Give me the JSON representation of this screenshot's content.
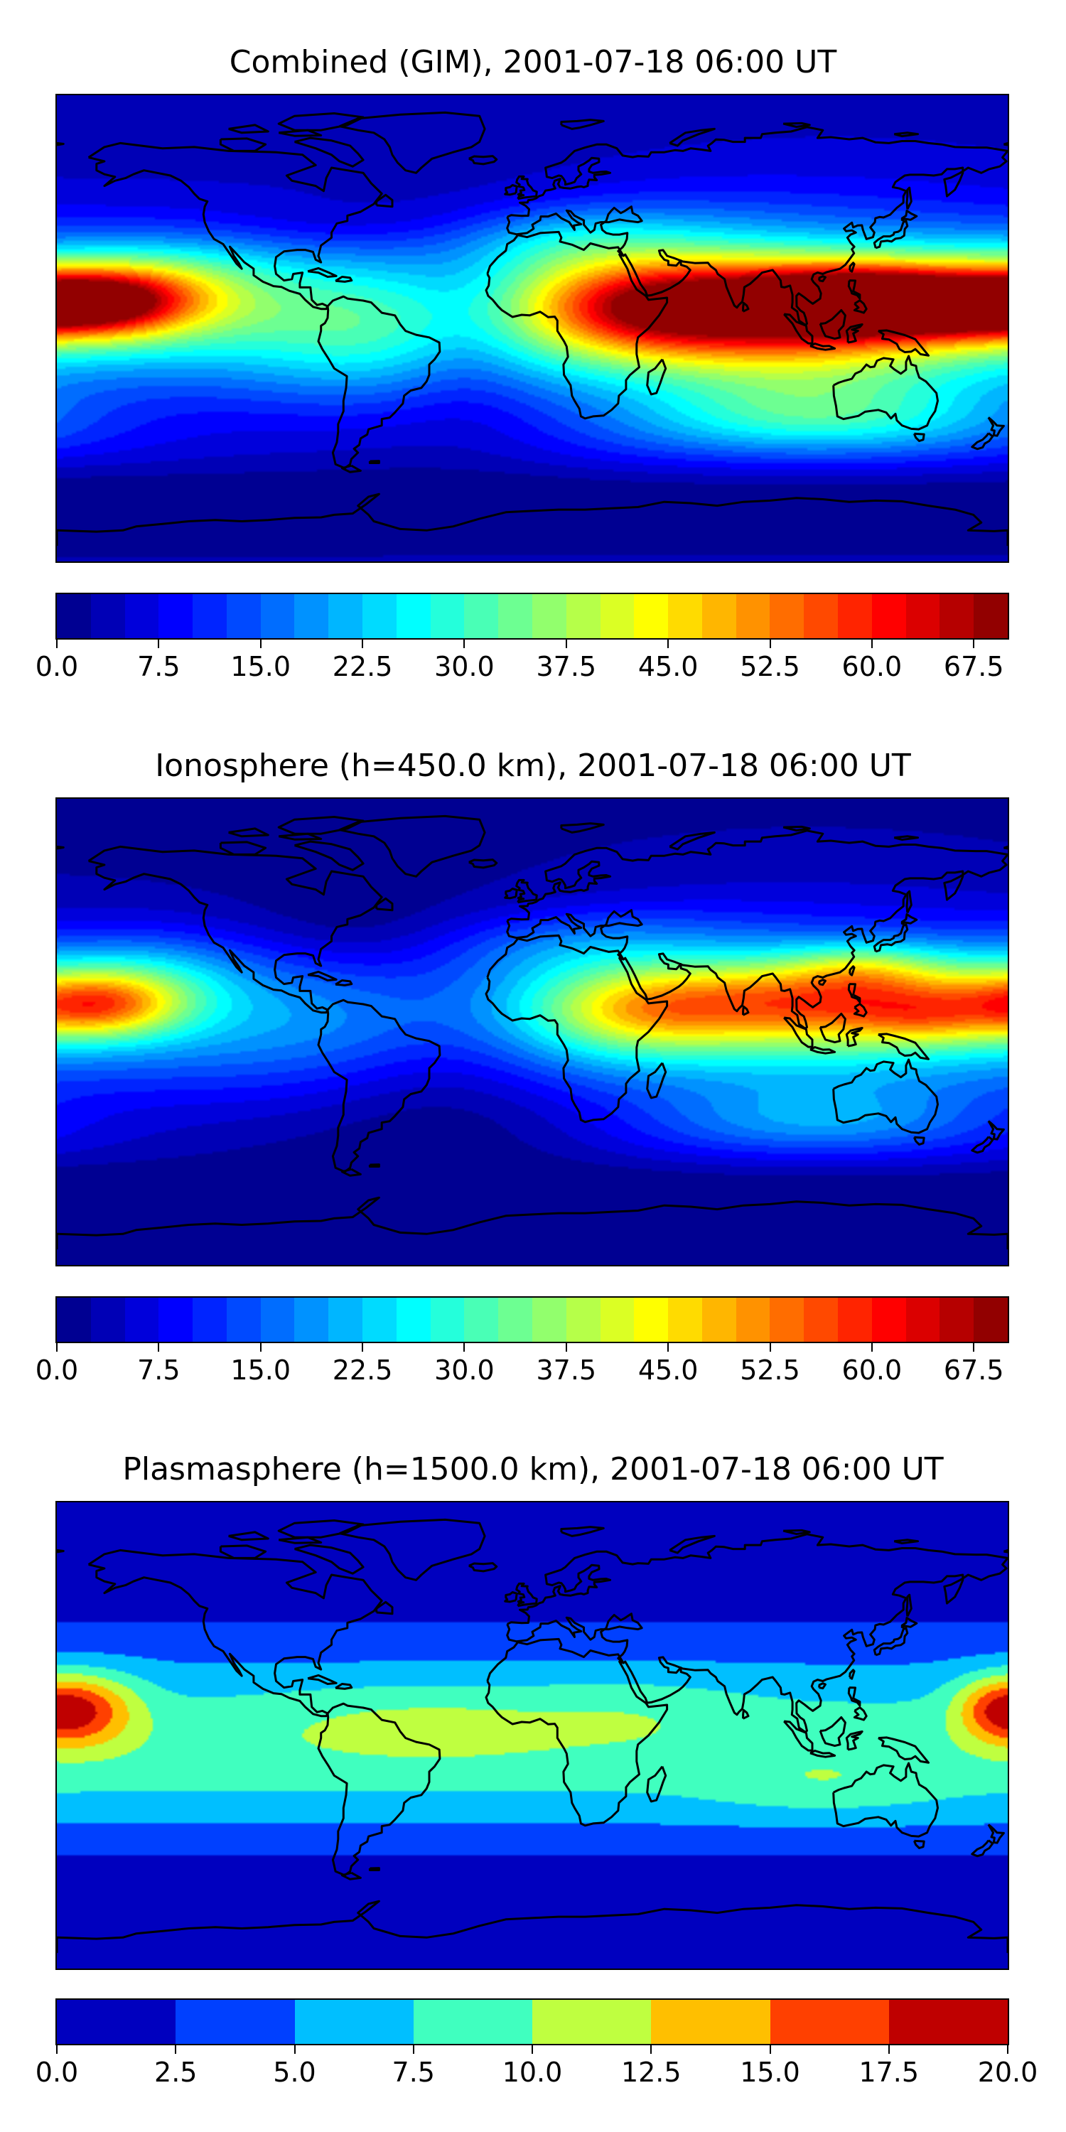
{
  "panels": [
    {
      "title": "Combined (GIM), 2001-07-18 06:00 UT",
      "colorbar": {
        "min": 0,
        "max": 70,
        "step": 2.5,
        "ticks": [
          "0.0",
          "7.5",
          "15.0",
          "22.5",
          "30.0",
          "37.5",
          "45.0",
          "52.5",
          "60.0",
          "67.5"
        ],
        "tick_values": [
          0,
          7.5,
          15,
          22.5,
          30,
          37.5,
          45,
          52.5,
          60,
          67.5
        ],
        "colormap": "jet"
      },
      "features": [
        {
          "lon": 125,
          "lat": 10,
          "rx": 80,
          "ry": 16,
          "v": 40
        },
        {
          "lon": 135,
          "lat": 12,
          "rx": 40,
          "ry": 10,
          "v": 20
        },
        {
          "lon": 160,
          "lat": 5,
          "rx": 30,
          "ry": 9,
          "v": 10
        },
        {
          "lon": 40,
          "lat": 8,
          "rx": 40,
          "ry": 18,
          "v": 22
        },
        {
          "lon": 90,
          "lat": 0,
          "rx": 60,
          "ry": 25,
          "v": 14
        },
        {
          "lon": -165,
          "lat": 10,
          "rx": 30,
          "ry": 12,
          "v": 30
        },
        {
          "lon": -140,
          "lat": 15,
          "rx": 40,
          "ry": 18,
          "v": 14
        },
        {
          "lon": 110,
          "lat": -35,
          "rx": 60,
          "ry": 15,
          "v": 18
        },
        {
          "lon": 10,
          "lat": 35,
          "rx": 50,
          "ry": 14,
          "v": 10
        },
        {
          "lon": -70,
          "lat": -5,
          "rx": 40,
          "ry": 25,
          "v": 6
        },
        {
          "lon": -25,
          "lat": 5,
          "rx": 25,
          "ry": 45,
          "v": -6
        },
        {
          "lon": -60,
          "lat": 40,
          "rx": 40,
          "ry": 12,
          "v": -5
        }
      ]
    },
    {
      "title": "Ionosphere  (h=450.0 km), 2001-07-18 06:00 UT",
      "colorbar": {
        "min": 0,
        "max": 70,
        "step": 2.5,
        "ticks": [
          "0.0",
          "7.5",
          "15.0",
          "22.5",
          "30.0",
          "37.5",
          "45.0",
          "52.5",
          "60.0",
          "67.5"
        ],
        "tick_values": [
          0,
          7.5,
          15,
          22.5,
          30,
          37.5,
          45,
          52.5,
          60,
          67.5
        ],
        "colormap": "jet"
      },
      "features": [
        {
          "lon": 115,
          "lat": 12,
          "rx": 75,
          "ry": 16,
          "v": 30
        },
        {
          "lon": 125,
          "lat": 25,
          "rx": 25,
          "ry": 10,
          "v": 10
        },
        {
          "lon": 150,
          "lat": 5,
          "rx": 25,
          "ry": 10,
          "v": 8
        },
        {
          "lon": 40,
          "lat": 8,
          "rx": 40,
          "ry": 16,
          "v": 16
        },
        {
          "lon": -165,
          "lat": 10,
          "rx": 30,
          "ry": 12,
          "v": 24
        },
        {
          "lon": -150,
          "lat": 20,
          "rx": 35,
          "ry": 18,
          "v": 10
        },
        {
          "lon": 110,
          "lat": -35,
          "rx": 55,
          "ry": 14,
          "v": 12
        },
        {
          "lon": 10,
          "lat": 35,
          "rx": 50,
          "ry": 14,
          "v": 8
        },
        {
          "lon": -30,
          "lat": -5,
          "rx": 45,
          "ry": 40,
          "v": -8
        },
        {
          "lon": -60,
          "lat": 40,
          "rx": 40,
          "ry": 15,
          "v": -5
        }
      ]
    },
    {
      "title": "Plasmasphere (h=1500.0 km), 2001-07-18 06:00 UT",
      "colorbar": {
        "min": 0,
        "max": 20,
        "step": 2.5,
        "ticks": [
          "0.0",
          "2.5",
          "5.0",
          "7.5",
          "10.0",
          "12.5",
          "15.0",
          "17.5",
          "20.0"
        ],
        "tick_values": [
          0,
          2.5,
          5,
          7.5,
          10,
          12.5,
          15,
          17.5,
          20
        ],
        "colormap": "jet"
      },
      "features": [
        {
          "lon": -170,
          "lat": 10,
          "rx": 20,
          "ry": 14,
          "v": 9
        },
        {
          "lon": 175,
          "lat": 10,
          "rx": 15,
          "ry": 12,
          "v": 6
        },
        {
          "lon": -40,
          "lat": 5,
          "rx": 60,
          "ry": 15,
          "v": 2.5
        },
        {
          "lon": 40,
          "lat": 10,
          "rx": 40,
          "ry": 14,
          "v": 1.5
        },
        {
          "lon": 110,
          "lat": -20,
          "rx": 40,
          "ry": 12,
          "v": 2
        }
      ]
    }
  ],
  "colors": {
    "land_outline": "#000000"
  }
}
